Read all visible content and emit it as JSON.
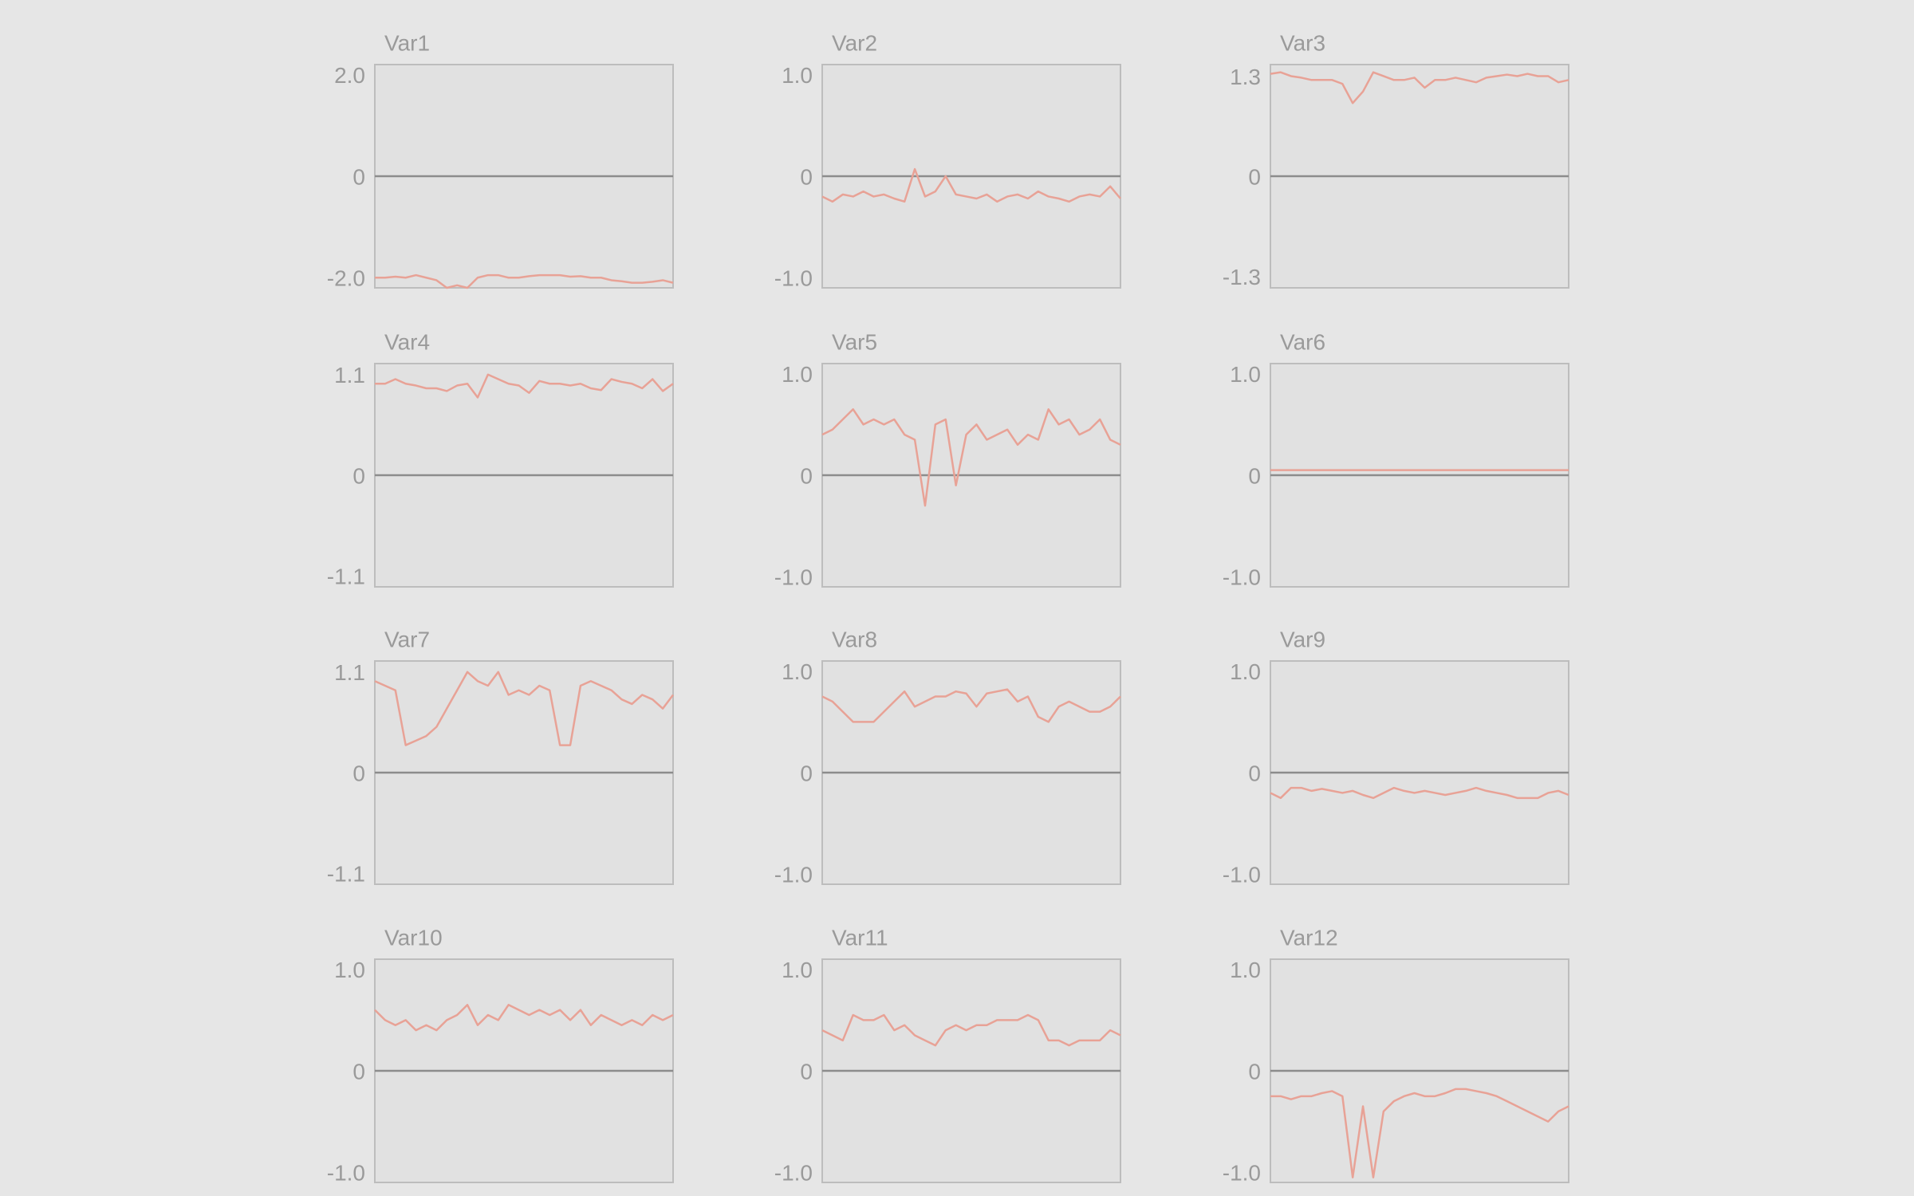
{
  "chart_data": [
    {
      "type": "line",
      "title": "Var1",
      "ylim": [
        -2.2,
        2.2
      ],
      "yticks": [
        {
          "value": 2,
          "label": "2.0"
        },
        0,
        {
          "value": -2,
          "label": "-2.0"
        }
      ],
      "color": "#e8a296",
      "values": [
        -2.0,
        -2.0,
        -1.98,
        -2.0,
        -1.95,
        -2.0,
        -2.05,
        -2.2,
        -2.15,
        -2.2,
        -2.0,
        -1.95,
        -1.95,
        -2.0,
        -2.0,
        -1.97,
        -1.95,
        -1.95,
        -1.95,
        -1.98,
        -1.97,
        -2.0,
        -2.0,
        -2.05,
        -2.07,
        -2.1,
        -2.1,
        -2.08,
        -2.05,
        -2.1
      ]
    },
    {
      "type": "line",
      "title": "Var2",
      "ylim": [
        -1.1,
        1.1
      ],
      "yticks": [
        {
          "value": 1,
          "label": "1.0"
        },
        0,
        {
          "value": -1,
          "label": "-1.0"
        }
      ],
      "color": "#e8a296",
      "values": [
        -0.2,
        -0.25,
        -0.18,
        -0.2,
        -0.15,
        -0.2,
        -0.18,
        -0.22,
        -0.25,
        0.07,
        -0.2,
        -0.15,
        0.0,
        -0.18,
        -0.2,
        -0.22,
        -0.18,
        -0.25,
        -0.2,
        -0.18,
        -0.22,
        -0.15,
        -0.2,
        -0.22,
        -0.25,
        -0.2,
        -0.18,
        -0.2,
        -0.1,
        -0.22
      ]
    },
    {
      "type": "line",
      "title": "Var3",
      "ylim": [
        -1.45,
        1.45
      ],
      "yticks": [
        1.3,
        0,
        -1.3
      ],
      "color": "#e8a296",
      "values": [
        1.33,
        1.35,
        1.3,
        1.28,
        1.25,
        1.25,
        1.25,
        1.2,
        0.95,
        1.1,
        1.35,
        1.3,
        1.25,
        1.25,
        1.28,
        1.15,
        1.25,
        1.25,
        1.28,
        1.25,
        1.22,
        1.28,
        1.3,
        1.32,
        1.3,
        1.33,
        1.3,
        1.3,
        1.22,
        1.25
      ]
    },
    {
      "type": "line",
      "title": "Var4",
      "ylim": [
        -1.22,
        1.22
      ],
      "yticks": [
        1.1,
        0,
        -1.1
      ],
      "color": "#e8a296",
      "values": [
        1.0,
        1.0,
        1.05,
        1.0,
        0.98,
        0.95,
        0.95,
        0.92,
        0.98,
        1.0,
        0.85,
        1.1,
        1.05,
        1.0,
        0.98,
        0.9,
        1.03,
        1.0,
        1.0,
        0.98,
        1.0,
        0.95,
        0.93,
        1.05,
        1.02,
        1.0,
        0.95,
        1.05,
        0.92,
        1.0
      ]
    },
    {
      "type": "line",
      "title": "Var5",
      "ylim": [
        -1.1,
        1.1
      ],
      "yticks": [
        {
          "value": 1,
          "label": "1.0"
        },
        0,
        {
          "value": -1,
          "label": "-1.0"
        }
      ],
      "color": "#e8a296",
      "values": [
        0.4,
        0.45,
        0.55,
        0.65,
        0.5,
        0.55,
        0.5,
        0.55,
        0.4,
        0.35,
        -0.3,
        0.5,
        0.55,
        -0.1,
        0.4,
        0.5,
        0.35,
        0.4,
        0.45,
        0.3,
        0.4,
        0.35,
        0.65,
        0.5,
        0.55,
        0.4,
        0.45,
        0.55,
        0.35,
        0.3
      ]
    },
    {
      "type": "line",
      "title": "Var6",
      "ylim": [
        -1.1,
        1.1
      ],
      "yticks": [
        {
          "value": 1,
          "label": "1.0"
        },
        0,
        {
          "value": -1,
          "label": "-1.0"
        }
      ],
      "color": "#e8a296",
      "values": [
        0.05,
        0.05,
        0.05,
        0.05,
        0.05,
        0.05,
        0.05,
        0.05,
        0.05,
        0.05,
        0.05,
        0.05,
        0.05,
        0.05,
        0.05,
        0.05,
        0.05,
        0.05,
        0.05,
        0.05,
        0.05,
        0.05,
        0.05,
        0.05,
        0.05,
        0.05,
        0.05,
        0.05,
        0.05,
        0.05
      ]
    },
    {
      "type": "line",
      "title": "Var7",
      "ylim": [
        -1.22,
        1.22
      ],
      "yticks": [
        1.1,
        0,
        -1.1
      ],
      "color": "#e8a296",
      "values": [
        1.0,
        0.95,
        0.9,
        0.3,
        0.35,
        0.4,
        0.5,
        0.7,
        0.9,
        1.1,
        1.0,
        0.95,
        1.1,
        0.85,
        0.9,
        0.85,
        0.95,
        0.9,
        0.3,
        0.3,
        0.95,
        1.0,
        0.95,
        0.9,
        0.8,
        0.75,
        0.85,
        0.8,
        0.7,
        0.85
      ]
    },
    {
      "type": "line",
      "title": "Var8",
      "ylim": [
        -1.1,
        1.1
      ],
      "yticks": [
        {
          "value": 1,
          "label": "1.0"
        },
        0,
        {
          "value": -1,
          "label": "-1.0"
        }
      ],
      "color": "#e8a296",
      "values": [
        0.75,
        0.7,
        0.6,
        0.5,
        0.5,
        0.5,
        0.6,
        0.7,
        0.8,
        0.65,
        0.7,
        0.75,
        0.75,
        0.8,
        0.78,
        0.65,
        0.78,
        0.8,
        0.82,
        0.7,
        0.75,
        0.55,
        0.5,
        0.65,
        0.7,
        0.65,
        0.6,
        0.6,
        0.65,
        0.75
      ]
    },
    {
      "type": "line",
      "title": "Var9",
      "ylim": [
        -1.1,
        1.1
      ],
      "yticks": [
        {
          "value": 1,
          "label": "1.0"
        },
        0,
        {
          "value": -1,
          "label": "-1.0"
        }
      ],
      "color": "#e8a296",
      "values": [
        -0.2,
        -0.25,
        -0.15,
        -0.15,
        -0.18,
        -0.16,
        -0.18,
        -0.2,
        -0.18,
        -0.22,
        -0.25,
        -0.2,
        -0.15,
        -0.18,
        -0.2,
        -0.18,
        -0.2,
        -0.22,
        -0.2,
        -0.18,
        -0.15,
        -0.18,
        -0.2,
        -0.22,
        -0.25,
        -0.25,
        -0.25,
        -0.2,
        -0.18,
        -0.22
      ]
    },
    {
      "type": "line",
      "title": "Var10",
      "ylim": [
        -1.1,
        1.1
      ],
      "yticks": [
        {
          "value": 1,
          "label": "1.0"
        },
        0,
        {
          "value": -1,
          "label": "-1.0"
        }
      ],
      "color": "#e8a296",
      "values": [
        0.6,
        0.5,
        0.45,
        0.5,
        0.4,
        0.45,
        0.4,
        0.5,
        0.55,
        0.65,
        0.45,
        0.55,
        0.5,
        0.65,
        0.6,
        0.55,
        0.6,
        0.55,
        0.6,
        0.5,
        0.6,
        0.45,
        0.55,
        0.5,
        0.45,
        0.5,
        0.45,
        0.55,
        0.5,
        0.55
      ]
    },
    {
      "type": "line",
      "title": "Var11",
      "ylim": [
        -1.1,
        1.1
      ],
      "yticks": [
        {
          "value": 1,
          "label": "1.0"
        },
        0,
        {
          "value": -1,
          "label": "-1.0"
        }
      ],
      "color": "#e8a296",
      "values": [
        0.4,
        0.35,
        0.3,
        0.55,
        0.5,
        0.5,
        0.55,
        0.4,
        0.45,
        0.35,
        0.3,
        0.25,
        0.4,
        0.45,
        0.4,
        0.45,
        0.45,
        0.5,
        0.5,
        0.5,
        0.55,
        0.5,
        0.3,
        0.3,
        0.25,
        0.3,
        0.3,
        0.3,
        0.4,
        0.35
      ]
    },
    {
      "type": "line",
      "title": "Var12",
      "ylim": [
        -1.1,
        1.1
      ],
      "yticks": [
        {
          "value": 1,
          "label": "1.0"
        },
        0,
        {
          "value": -1,
          "label": "-1.0"
        }
      ],
      "color": "#e8a296",
      "values": [
        -0.25,
        -0.25,
        -0.28,
        -0.25,
        -0.25,
        -0.22,
        -0.2,
        -0.25,
        -1.05,
        -0.35,
        -1.05,
        -0.4,
        -0.3,
        -0.25,
        -0.22,
        -0.25,
        -0.25,
        -0.22,
        -0.18,
        -0.18,
        -0.2,
        -0.22,
        -0.25,
        -0.3,
        -0.35,
        -0.4,
        -0.45,
        -0.5,
        -0.4,
        -0.35
      ]
    }
  ]
}
